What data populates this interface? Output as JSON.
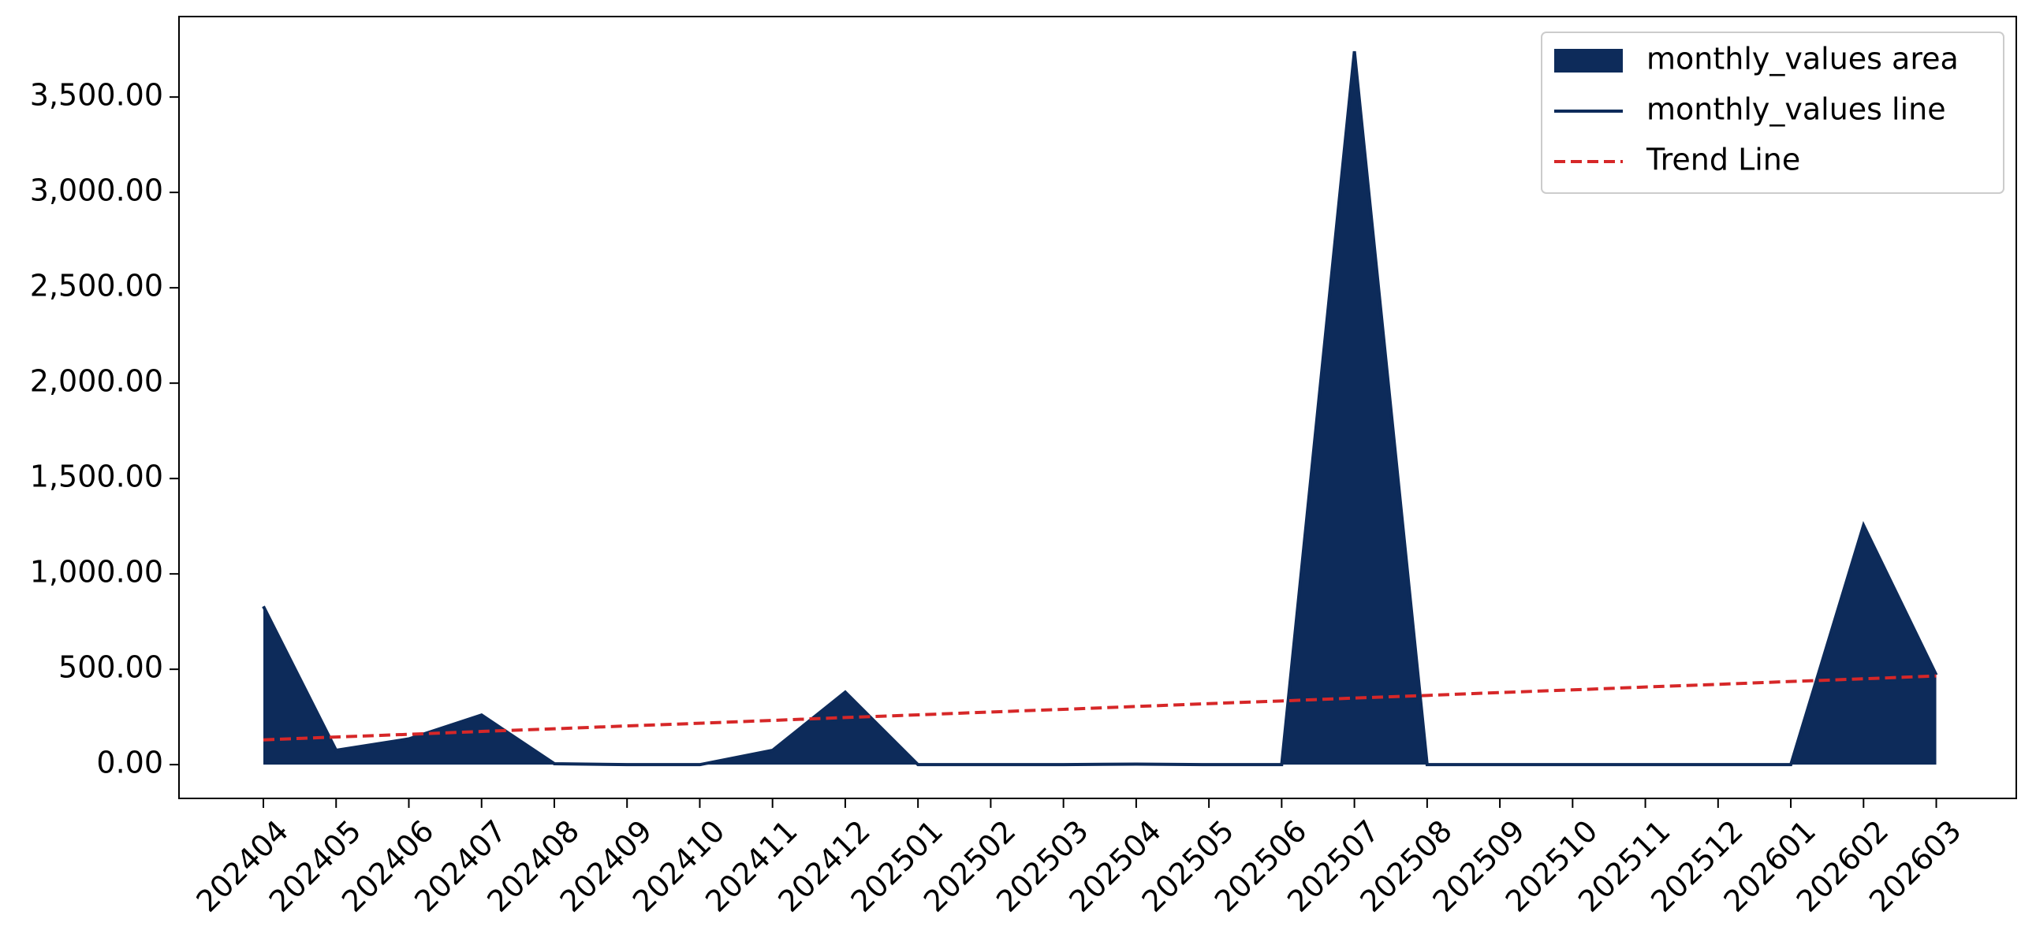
{
  "chart_data": {
    "type": "area",
    "categories": [
      "202404",
      "202405",
      "202406",
      "202407",
      "202408",
      "202409",
      "202410",
      "202411",
      "202412",
      "202501",
      "202502",
      "202503",
      "202504",
      "202505",
      "202506",
      "202507",
      "202508",
      "202509",
      "202510",
      "202511",
      "202512",
      "202601",
      "202602",
      "202603"
    ],
    "series": [
      {
        "name": "monthly_values area",
        "kind": "area",
        "color": "#0d2b5a",
        "values": [
          830,
          75,
          135,
          260,
          5,
          0,
          0,
          75,
          380,
          0,
          0,
          0,
          3,
          0,
          0,
          3740,
          0,
          0,
          0,
          0,
          0,
          0,
          1255,
          470
        ]
      },
      {
        "name": "monthly_values line",
        "kind": "line",
        "color": "#0d2b5a",
        "values": [
          830,
          75,
          135,
          260,
          5,
          0,
          0,
          75,
          380,
          0,
          0,
          0,
          3,
          0,
          0,
          3740,
          0,
          0,
          0,
          0,
          0,
          0,
          1255,
          470
        ]
      },
      {
        "name": "Trend Line",
        "kind": "dashed",
        "color": "#d62728",
        "values": [
          130,
          145,
          159,
          174,
          188,
          203,
          217,
          232,
          247,
          261,
          276,
          290,
          305,
          320,
          334,
          349,
          363,
          378,
          392,
          407,
          421,
          436,
          450,
          465
        ]
      }
    ],
    "ylim": [
      -177,
      3922
    ],
    "yticks": [
      {
        "value": 0,
        "label": "0.00"
      },
      {
        "value": 500,
        "label": "500.00"
      },
      {
        "value": 1000,
        "label": "1,000.00"
      },
      {
        "value": 1500,
        "label": "1,500.00"
      },
      {
        "value": 2000,
        "label": "2,000.00"
      },
      {
        "value": 2500,
        "label": "2,500.00"
      },
      {
        "value": 3000,
        "label": "3,000.00"
      },
      {
        "value": 3500,
        "label": "3,500.00"
      }
    ],
    "legend": "upper right",
    "grid": false
  }
}
